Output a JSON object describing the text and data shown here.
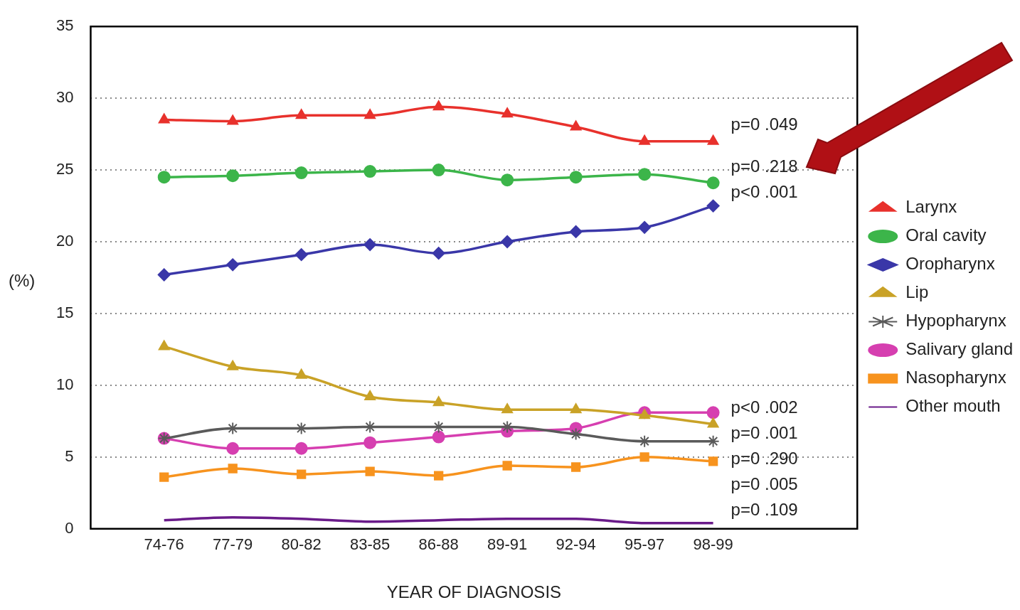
{
  "chart_data": {
    "type": "line",
    "xlabel": "YEAR OF DIAGNOSIS",
    "ylabel": "(%)",
    "categories": [
      "74-76",
      "77-79",
      "80-82",
      "83-85",
      "86-88",
      "89-91",
      "92-94",
      "95-97",
      "98-99"
    ],
    "ylim": [
      0,
      35
    ],
    "yticks": [
      0,
      5,
      10,
      15,
      20,
      25,
      30,
      35
    ],
    "grid": "y",
    "legend": "right",
    "line_style": "solid",
    "series": [
      {
        "name": "Larynx",
        "color": "#e8312c",
        "marker": "triangle",
        "values": [
          28.5,
          28.4,
          28.8,
          28.8,
          29.4,
          28.9,
          28.0,
          27.0,
          27.0
        ]
      },
      {
        "name": "Oral cavity",
        "color": "#3cb54a",
        "marker": "circle",
        "values": [
          24.5,
          24.6,
          24.8,
          24.9,
          25.0,
          24.3,
          24.5,
          24.7,
          24.1
        ]
      },
      {
        "name": "Oropharynx",
        "color": "#3a37a8",
        "marker": "diamond",
        "values": [
          17.7,
          18.4,
          19.1,
          19.8,
          19.2,
          20.0,
          20.7,
          21.0,
          22.5
        ]
      },
      {
        "name": "Lip",
        "color": "#c9a227",
        "marker": "triangle",
        "values": [
          12.7,
          11.3,
          10.7,
          9.2,
          8.8,
          8.3,
          8.3,
          7.9,
          7.3
        ]
      },
      {
        "name": "Hypopharynx",
        "color": "#5a5a5a",
        "marker": "cross",
        "values": [
          6.3,
          7.0,
          7.0,
          7.1,
          7.1,
          7.1,
          6.6,
          6.1,
          6.1
        ]
      },
      {
        "name": "Salivary gland",
        "color": "#d63fb0",
        "marker": "circle",
        "values": [
          6.3,
          5.6,
          5.6,
          6.0,
          6.4,
          6.8,
          7.0,
          8.1,
          8.1
        ]
      },
      {
        "name": "Nasopharynx",
        "color": "#f7931e",
        "marker": "square",
        "values": [
          3.6,
          4.2,
          3.8,
          4.0,
          3.7,
          4.4,
          4.3,
          5.0,
          4.7
        ]
      },
      {
        "name": "Other mouth",
        "color": "#6a1b8a",
        "marker": "none",
        "values": [
          0.6,
          0.8,
          0.7,
          0.5,
          0.6,
          0.7,
          0.7,
          0.4,
          0.4
        ]
      }
    ],
    "annotations": [
      "p=0 .049",
      "p=0 .218",
      "p<0 .001",
      "p<0 .002",
      "p=0 .001",
      "p=0 .290",
      "p=0 .005",
      "p=0 .109"
    ]
  }
}
